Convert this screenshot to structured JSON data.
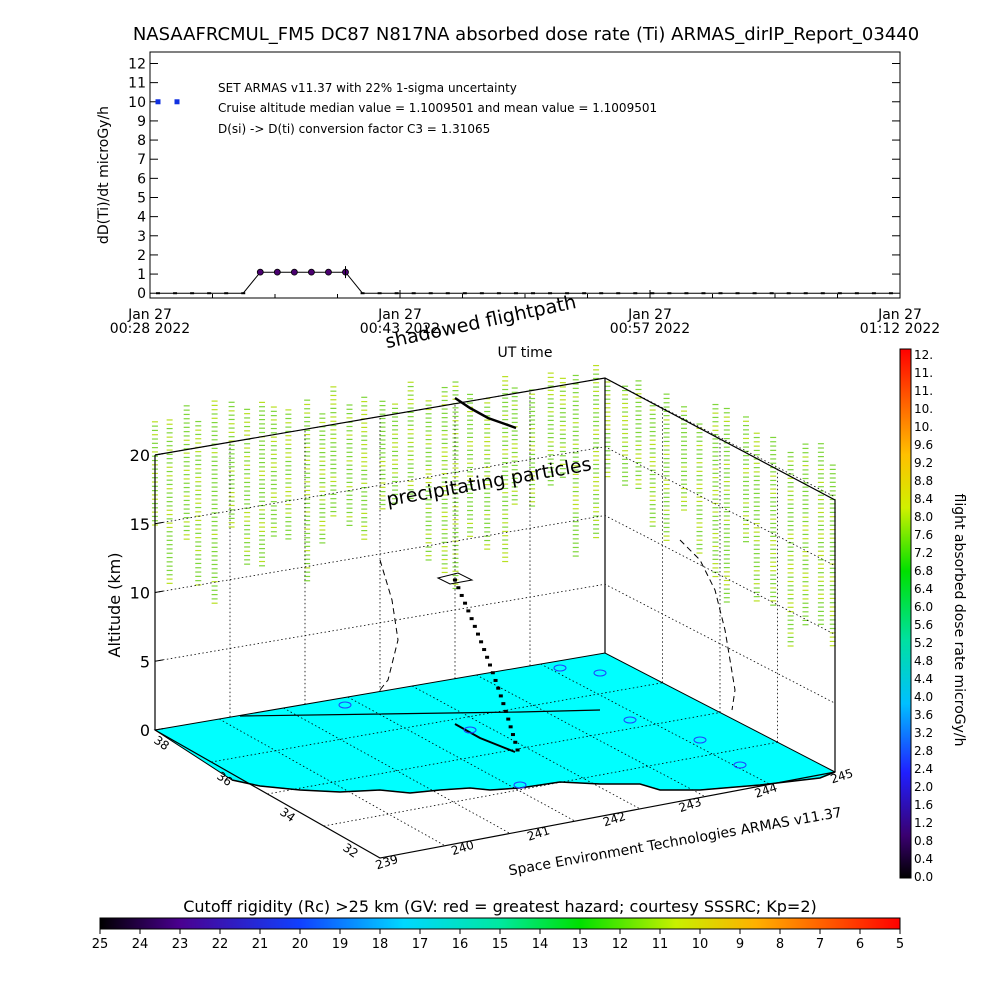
{
  "page": {
    "title": "NASAAFRCMUL_FM5 DC87 N817NA absorbed dose rate (Ti) ARMAS_dirIP_Report_03440"
  },
  "chart_data": [
    {
      "type": "line",
      "ylabel": "dD(Ti)/dt microGy/h",
      "xlabel": "UT time",
      "ylim": [
        0,
        12
      ],
      "yticks": [
        "0",
        "1",
        "2",
        "3",
        "4",
        "5",
        "6",
        "7",
        "8",
        "9",
        "10",
        "11",
        "12"
      ],
      "xticks": [
        {
          "line1": "Jan 27",
          "line2": "00:28 2022"
        },
        {
          "line1": "Jan 27",
          "line2": "00:43 2022"
        },
        {
          "line1": "Jan 27",
          "line2": "00:57 2022"
        },
        {
          "line1": "Jan 27",
          "line2": "01:12 2022"
        }
      ],
      "x_minutes": [
        0,
        1,
        2,
        3,
        4,
        5,
        6,
        7,
        8,
        9,
        10,
        11,
        12,
        13,
        14,
        15,
        16,
        17,
        18,
        19,
        20,
        21,
        22,
        23,
        24,
        25,
        26,
        27,
        28,
        29,
        30,
        31,
        32,
        33,
        34,
        35,
        36,
        37,
        38,
        39,
        40,
        41,
        42,
        43
      ],
      "dose_rate": [
        0,
        0,
        0,
        0,
        0,
        0,
        1.1,
        1.1,
        1.1,
        1.1,
        1.1,
        1.1,
        0,
        0,
        0,
        0,
        0,
        0,
        0,
        0,
        0,
        0,
        0,
        0,
        0,
        0,
        0,
        0,
        0,
        0,
        0,
        0,
        0,
        0,
        0,
        0,
        0,
        0,
        0,
        0,
        0,
        0,
        0,
        0
      ],
      "elevated_point_value": 10,
      "legend_points_color": "#1030e0",
      "annotations": [
        "SET ARMAS v11.37 with 22% 1-sigma uncertainty",
        "Cruise altitude median value = 1.1009501 and mean value = 1.1009501",
        "D(si) -> D(ti) conversion factor C3 = 1.31065"
      ]
    },
    {
      "type": "scatter",
      "zlabel": "Altitude (km)",
      "zticks": [
        "0",
        "5",
        "10",
        "15",
        "20"
      ],
      "lat_ticks": [
        "38",
        "36",
        "34",
        "32"
      ],
      "lon_ticks": [
        "239",
        "240",
        "241",
        "242",
        "243",
        "244",
        "245"
      ],
      "overlay_labels": [
        "shadowed flightpath",
        "precipitating particles"
      ],
      "footer": "Space Environment Technologies ARMAS v11.37",
      "surface_color": "#00ffff",
      "particle_color": "#7fd63a"
    }
  ],
  "colorbar": {
    "label": "flight absorbed dose rate microGy/h",
    "ticks": [
      "12.",
      "11.",
      "11.",
      "10.",
      "10.",
      "9.6",
      "9.2",
      "8.8",
      "8.4",
      "8.0",
      "7.6",
      "7.2",
      "6.8",
      "6.4",
      "6.0",
      "5.6",
      "5.2",
      "4.8",
      "4.4",
      "4.0",
      "3.6",
      "3.2",
      "2.8",
      "2.4",
      "2.0",
      "1.6",
      "1.2",
      "0.8",
      "0.4",
      "0.0"
    ]
  },
  "cutoff": {
    "title": "Cutoff rigidity (Rc) >25 km (GV: red = greatest hazard; courtesy SSSRC; Kp=2)",
    "ticks": [
      "25",
      "24",
      "23",
      "22",
      "21",
      "20",
      "19",
      "18",
      "17",
      "16",
      "15",
      "14",
      "13",
      "12",
      "11",
      "10",
      "9",
      "8",
      "7",
      "6",
      "5"
    ]
  }
}
